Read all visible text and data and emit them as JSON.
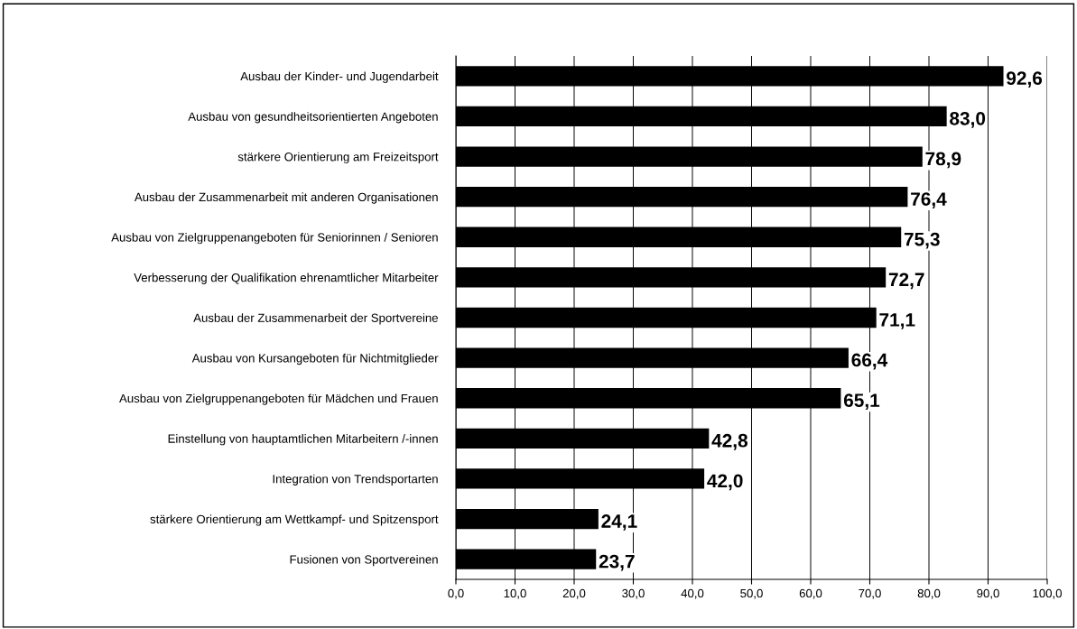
{
  "chart_data": {
    "type": "bar",
    "orientation": "horizontal",
    "categories": [
      "Ausbau der Kinder- und Jugendarbeit",
      "Ausbau von gesundheitsorientierten Angeboten",
      "stärkere Orientierung am Freizeitsport",
      "Ausbau der Zusammenarbeit mit anderen Organisationen",
      "Ausbau von Zielgruppenangeboten für Seniorinnen / Senioren",
      "Verbesserung der Qualifikation ehrenamtlicher Mitarbeiter",
      "Ausbau der Zusammenarbeit der Sportvereine",
      "Ausbau von Kursangeboten für Nichtmitglieder",
      "Ausbau von Zielgruppenangeboten für Mädchen und Frauen",
      "Einstellung von hauptamtlichen Mitarbeitern /-innen",
      "Integration von Trendsportarten",
      "stärkere Orientierung am Wettkampf- und Spitzensport",
      "Fusionen von Sportvereinen"
    ],
    "values": [
      92.6,
      83.0,
      78.9,
      76.4,
      75.3,
      72.7,
      71.1,
      66.4,
      65.1,
      42.8,
      42.0,
      24.1,
      23.7
    ],
    "value_labels": [
      "92,6",
      "83,0",
      "78,9",
      "76,4",
      "75,3",
      "72,7",
      "71,1",
      "66,4",
      "65,1",
      "42,8",
      "42,0",
      "24,1",
      "23,7"
    ],
    "color": "#000000",
    "xlim": [
      0,
      100
    ],
    "xticks": [
      {
        "value": 0,
        "label": "0,0"
      },
      {
        "value": 10,
        "label": "10,0"
      },
      {
        "value": 20,
        "label": "20,0"
      },
      {
        "value": 30,
        "label": "30,0"
      },
      {
        "value": 40,
        "label": "40,0"
      },
      {
        "value": 50,
        "label": "50,0"
      },
      {
        "value": 60,
        "label": "60,0"
      },
      {
        "value": 70,
        "label": "70,0"
      },
      {
        "value": 80,
        "label": "80,0"
      },
      {
        "value": 90,
        "label": "90,0"
      },
      {
        "value": 100,
        "label": "100,0"
      }
    ],
    "grid": "x"
  }
}
